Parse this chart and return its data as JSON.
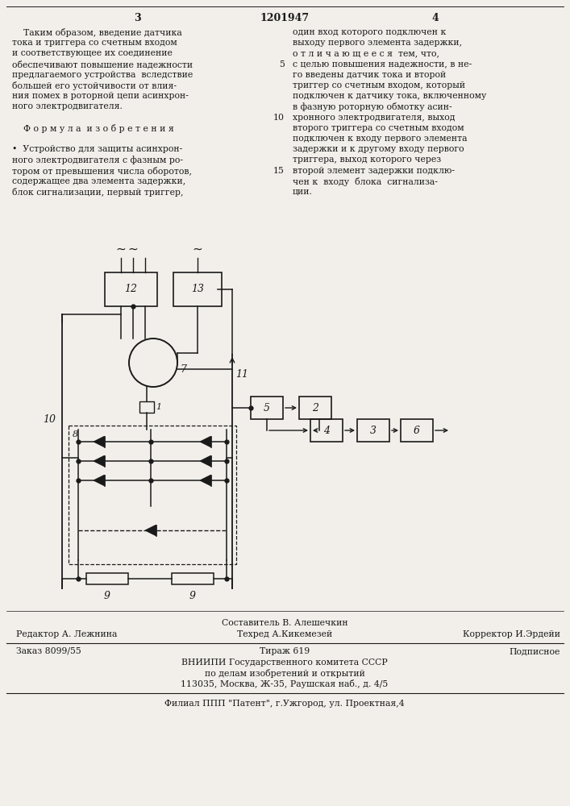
{
  "bg_color": "#f2efea",
  "text_color": "#1a1a1a",
  "title_patent": "1201947",
  "page_left": "3",
  "page_right": "4",
  "col_left_text": [
    "    Таким образом, введение датчика",
    "тока и триггера со счетным входом",
    "и соответствующее их соединение",
    "обеспечивают повышение надежности",
    "предлагаемого устройства  вследствие",
    "большей его устойчивости от влия-",
    "ния помех в роторной цепи асинхрон-",
    "ного электродвигателя.",
    "",
    "    Ф о р м у л а  и з о б р е т е н и я",
    "",
    "•  Устройство для защиты асинхрон-",
    "ного электродвигателя с фазным ро-",
    "тором от превышения числа оборотов,",
    "содержащее два элемента задержки,",
    "блок сигнализации, первый триггер,"
  ],
  "col_right_text": [
    "один вход которого подключен к",
    "выходу первого элемента задержки,",
    "о т л и ч а ю щ е е с я  тем, что,",
    "с целью повышения надежности, в не-",
    "го введены датчик тока и второй",
    "триггер со счетным входом, который",
    "подключен к датчику тока, включенному",
    "в фазную роторную обмотку асин-",
    "хронного электродвигателя, выход",
    "второго триггера со счетным входом",
    "подключен к входу первого элемента",
    "задержки и к другому входу первого",
    "триггера, выход которого через",
    "второй элемент задержки подклю-",
    "чен к  входу  блока  сигнализа-",
    "ции."
  ],
  "right_line_nums": {
    "3": "5",
    "8": "10",
    "13": "15"
  },
  "footer_compose": "Составитель В. Алешечкин",
  "footer_editor": "Редактор А. Лежнина",
  "footer_tech": "Техред А.Кикемезей",
  "footer_correct": "Корректор И.Эрдейи",
  "footer_order": "Заказ 8099/55",
  "footer_copies": "Тираж 619",
  "footer_sub": "Подписное",
  "footer_org1": "ВНИИПИ Государственного комитета СССР",
  "footer_org2": "по делам изобретений и открытий",
  "footer_addr": "113035, Москва, Ж-35, Раушская наб., д. 4/5",
  "footer_branch": "Филиал ППП \"Патент\", г.Ужгород, ул. Проектная,4"
}
